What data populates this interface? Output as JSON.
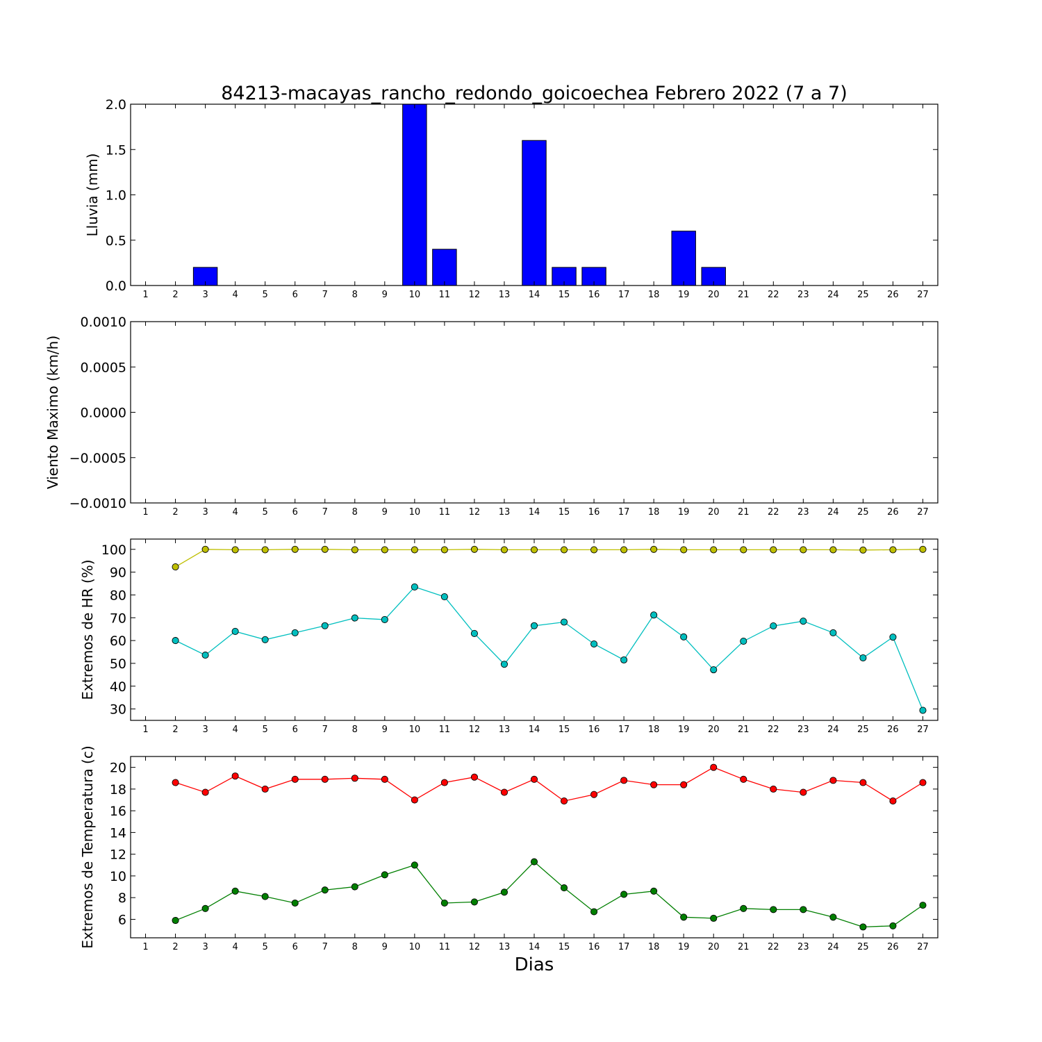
{
  "chart_data": [
    {
      "type": "bar",
      "title": "84213-macayas_rancho_redondo_goicoechea Febrero 2022  (7 a 7)",
      "ylabel": "Lluvia (mm)",
      "xlabel": "",
      "ylim": [
        0,
        2.0
      ],
      "yticks": [
        "0.0",
        "0.5",
        "1.0",
        "1.5",
        "2.0"
      ],
      "categories": [
        "1",
        "2",
        "3",
        "4",
        "5",
        "6",
        "7",
        "8",
        "9",
        "10",
        "11",
        "12",
        "13",
        "14",
        "15",
        "16",
        "17",
        "18",
        "19",
        "20",
        "21",
        "22",
        "23",
        "24",
        "25",
        "26",
        "27"
      ],
      "values": [
        0,
        0,
        0.2,
        0,
        0,
        0,
        0,
        0,
        0,
        2.0,
        0.4,
        0,
        0,
        1.6,
        0.2,
        0.2,
        0,
        0,
        0.6,
        0.2,
        0,
        0,
        0,
        0,
        0,
        0,
        0
      ],
      "color": "#0000ff"
    },
    {
      "type": "line",
      "title": "",
      "ylabel": "Viento Maximo (km/h)",
      "xlabel": "",
      "ylim": [
        -0.001,
        0.001
      ],
      "yticks": [
        "−0.0010",
        "−0.0005",
        "0.0000",
        "0.0005",
        "0.0010"
      ],
      "categories": [
        "1",
        "2",
        "3",
        "4",
        "5",
        "6",
        "7",
        "8",
        "9",
        "10",
        "11",
        "12",
        "13",
        "14",
        "15",
        "16",
        "17",
        "18",
        "19",
        "20",
        "21",
        "22",
        "23",
        "24",
        "25",
        "26",
        "27"
      ],
      "series": []
    },
    {
      "type": "line",
      "title": "",
      "ylabel": "Extremos de HR (%)",
      "xlabel": "",
      "ylim": [
        25,
        104.5
      ],
      "yticks": [
        "30",
        "40",
        "50",
        "60",
        "70",
        "80",
        "90",
        "100"
      ],
      "categories": [
        "1",
        "2",
        "3",
        "4",
        "5",
        "6",
        "7",
        "8",
        "9",
        "10",
        "11",
        "12",
        "13",
        "14",
        "15",
        "16",
        "17",
        "18",
        "19",
        "20",
        "21",
        "22",
        "23",
        "24",
        "25",
        "26",
        "27"
      ],
      "series": [
        {
          "color": "#bfbf00",
          "x": [
            2,
            3,
            4,
            5,
            6,
            7,
            8,
            9,
            10,
            11,
            12,
            13,
            14,
            15,
            16,
            17,
            18,
            19,
            20,
            21,
            22,
            23,
            24,
            25,
            26,
            27
          ],
          "values": [
            92.3,
            100,
            99.8,
            99.8,
            100,
            100,
            99.8,
            99.8,
            99.8,
            99.8,
            100,
            99.8,
            99.8,
            99.8,
            99.8,
            99.8,
            100,
            99.8,
            99.8,
            99.8,
            99.8,
            99.8,
            99.8,
            99.7,
            99.8,
            100
          ]
        },
        {
          "color": "#00bfbf",
          "x": [
            2,
            3,
            4,
            5,
            6,
            7,
            8,
            9,
            10,
            11,
            12,
            13,
            14,
            15,
            16,
            17,
            18,
            19,
            20,
            21,
            22,
            23,
            24,
            25,
            26,
            27
          ],
          "values": [
            60,
            53.6,
            64,
            60.4,
            63.4,
            66.5,
            69.9,
            69.2,
            83.5,
            79.2,
            63.1,
            49.6,
            66.5,
            68.1,
            58.5,
            51.5,
            71.2,
            61.6,
            47.2,
            59.7,
            66.4,
            68.5,
            63.4,
            52.4,
            61.5,
            29.4
          ]
        }
      ]
    },
    {
      "type": "line",
      "title": "",
      "ylabel": "Extremos de Temperatura (c)",
      "xlabel": "Dias",
      "ylim": [
        4.3,
        21.0
      ],
      "yticks": [
        "6",
        "8",
        "10",
        "12",
        "14",
        "16",
        "18",
        "20"
      ],
      "categories": [
        "1",
        "2",
        "3",
        "4",
        "5",
        "6",
        "7",
        "8",
        "9",
        "10",
        "11",
        "12",
        "13",
        "14",
        "15",
        "16",
        "17",
        "18",
        "19",
        "20",
        "21",
        "22",
        "23",
        "24",
        "25",
        "26",
        "27"
      ],
      "series": [
        {
          "color": "#ff0000",
          "x": [
            2,
            3,
            4,
            5,
            6,
            7,
            8,
            9,
            10,
            11,
            12,
            13,
            14,
            15,
            16,
            17,
            18,
            19,
            20,
            21,
            22,
            23,
            24,
            25,
            26,
            27
          ],
          "values": [
            18.6,
            17.7,
            19.2,
            18.0,
            18.9,
            18.9,
            19.0,
            18.9,
            17.0,
            18.6,
            19.1,
            17.7,
            18.9,
            16.9,
            17.5,
            18.8,
            18.4,
            18.4,
            20.0,
            18.9,
            18.0,
            17.7,
            18.8,
            18.6,
            16.9,
            18.6
          ]
        },
        {
          "color": "#007f00",
          "x": [
            2,
            3,
            4,
            5,
            6,
            7,
            8,
            9,
            10,
            11,
            12,
            13,
            14,
            15,
            16,
            17,
            18,
            19,
            20,
            21,
            22,
            23,
            24,
            25,
            26,
            27
          ],
          "values": [
            5.9,
            7.0,
            8.6,
            8.1,
            7.5,
            8.7,
            9.0,
            10.1,
            11.0,
            7.5,
            7.6,
            8.5,
            11.3,
            8.9,
            6.7,
            8.3,
            8.6,
            6.2,
            6.1,
            7.0,
            6.9,
            6.9,
            6.2,
            5.3,
            5.4,
            7.3
          ]
        }
      ]
    }
  ]
}
